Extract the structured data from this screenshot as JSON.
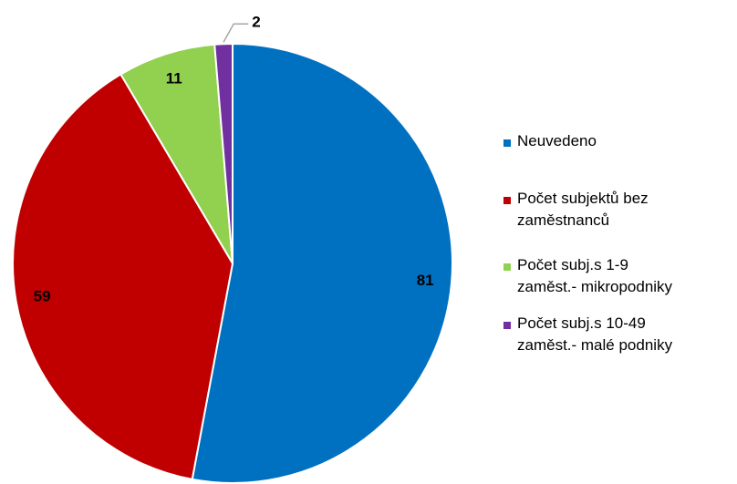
{
  "chart_data": {
    "type": "pie",
    "categories": [
      "Neuvedeno",
      "Počet subjektů bez\nzaměstnanců",
      "Počet subj.s 1-9\nzaměst.- mikropodniky",
      "Počet subj.s 10-49\nzaměst.- malé podniky"
    ],
    "values": [
      81,
      59,
      11,
      2
    ],
    "colors": [
      "#0070c0",
      "#c00000",
      "#92d050",
      "#7030a0"
    ],
    "legend": "right"
  }
}
